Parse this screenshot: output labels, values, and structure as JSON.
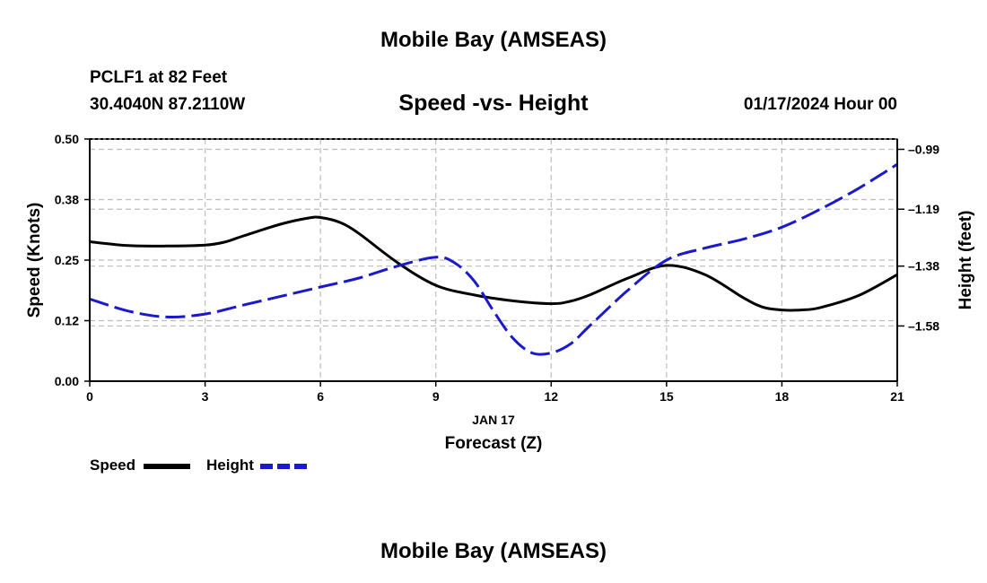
{
  "titles": {
    "main": "Mobile Bay (AMSEAS)",
    "station": "PCLF1 at 82 Feet",
    "coords": "30.4040N  87.2110W",
    "datetime": "01/17/2024 Hour 00",
    "bottom": "Mobile Bay (AMSEAS)"
  },
  "colors": {
    "speed": "#000000",
    "height": "#1a1acc",
    "grid": "#bdbdbd"
  },
  "chart_data": {
    "type": "line",
    "title": "Speed -vs- Height",
    "xlabel": "Forecast (Z)",
    "xdate": "JAN 17",
    "ylabel": "Speed (Knots)",
    "y2label": "Height (feet)",
    "xlim": [
      0,
      21
    ],
    "ylim": [
      0,
      0.5
    ],
    "y2lim": [
      -1.7644,
      -0.9556
    ],
    "x_ticks": [
      0,
      3,
      6,
      9,
      12,
      15,
      18,
      21
    ],
    "x_tick_labels": [
      "0",
      "3",
      "6",
      "9",
      "12",
      "15",
      "18",
      "21"
    ],
    "y_ticks": [
      0,
      0.125,
      0.25,
      0.375,
      0.5
    ],
    "y_tick_labels": [
      "0.00",
      "0.12",
      "0.25",
      "0.38",
      "0.50"
    ],
    "y2_ticks": [
      -1.58,
      -1.38,
      -1.19,
      -0.99
    ],
    "y2_tick_labels": [
      "-1.58",
      "-1.38",
      "-1.19",
      "-0.99"
    ],
    "grid": true,
    "legend": "bottom-left",
    "series": [
      {
        "name": "Speed",
        "axis": "left",
        "style": "solid",
        "x": [
          0,
          1,
          2,
          3,
          3.5,
          4,
          5,
          5.7,
          6,
          6.5,
          7,
          8,
          9,
          10,
          11,
          12,
          12.5,
          13,
          14,
          15,
          16,
          17,
          17.5,
          18,
          18.5,
          19,
          20,
          21
        ],
        "values": [
          0.288,
          0.28,
          0.279,
          0.281,
          0.287,
          0.3,
          0.325,
          0.337,
          0.338,
          0.328,
          0.305,
          0.245,
          0.198,
          0.178,
          0.166,
          0.16,
          0.165,
          0.178,
          0.213,
          0.239,
          0.22,
          0.172,
          0.153,
          0.147,
          0.147,
          0.152,
          0.177,
          0.22
        ]
      },
      {
        "name": "Height",
        "axis": "right",
        "style": "dashed",
        "x": [
          0,
          1,
          2,
          3,
          4,
          5,
          6,
          7,
          8,
          9,
          9.5,
          10,
          10.5,
          11,
          11.5,
          12,
          12.5,
          13,
          14,
          15,
          16,
          17,
          18,
          19,
          20,
          21
        ],
        "values": [
          -1.49,
          -1.53,
          -1.55,
          -1.54,
          -1.51,
          -1.48,
          -1.45,
          -1.42,
          -1.38,
          -1.35,
          -1.37,
          -1.43,
          -1.53,
          -1.62,
          -1.67,
          -1.67,
          -1.64,
          -1.58,
          -1.46,
          -1.36,
          -1.32,
          -1.29,
          -1.25,
          -1.19,
          -1.12,
          -1.04
        ]
      }
    ]
  },
  "legend": {
    "speed_label": "Speed",
    "height_label": "Height"
  }
}
